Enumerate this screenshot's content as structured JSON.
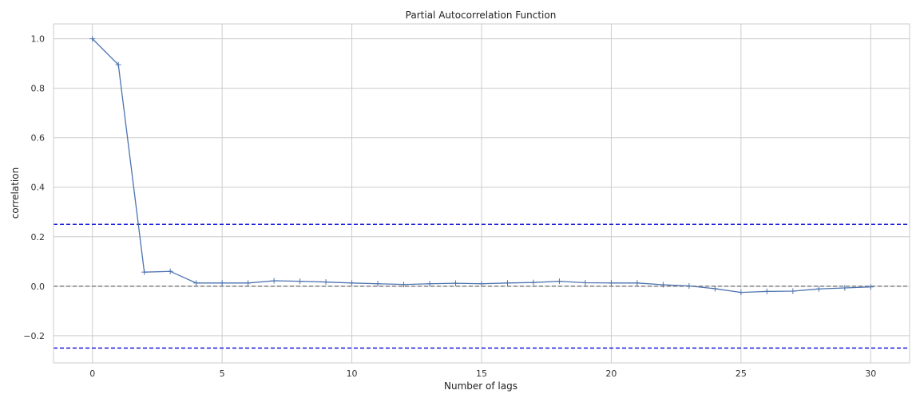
{
  "chart_data": {
    "type": "line",
    "title": "Partial Autocorrelation Function",
    "xlabel": "Number of lags",
    "ylabel": "correlation",
    "xlim": [
      -1.5,
      31.5
    ],
    "ylim": [
      -0.31,
      1.06
    ],
    "xticks": [
      0,
      5,
      10,
      15,
      20,
      25,
      30
    ],
    "xtick_labels": [
      "0",
      "5",
      "10",
      "15",
      "20",
      "25",
      "30"
    ],
    "yticks": [
      -0.2,
      0.0,
      0.2,
      0.4,
      0.6,
      0.8,
      1.0
    ],
    "ytick_labels": [
      "−0.2",
      "0.0",
      "0.2",
      "0.4",
      "0.6",
      "0.8",
      "1.0"
    ],
    "grid": true,
    "series": [
      {
        "color": "#4c72b0",
        "marker": "+",
        "x": [
          0,
          1,
          2,
          3,
          4,
          5,
          6,
          7,
          8,
          9,
          10,
          11,
          12,
          13,
          14,
          15,
          16,
          17,
          18,
          19,
          20,
          21,
          22,
          23,
          24,
          25,
          26,
          27,
          28,
          29,
          30
        ],
        "values": [
          1.0,
          0.895,
          0.057,
          0.06,
          0.013,
          0.013,
          0.013,
          0.022,
          0.02,
          0.017,
          0.013,
          0.01,
          0.007,
          0.01,
          0.012,
          0.01,
          0.013,
          0.015,
          0.02,
          0.014,
          0.013,
          0.013,
          0.006,
          0.001,
          -0.01,
          -0.025,
          -0.021,
          -0.02,
          -0.011,
          -0.007,
          -0.003
        ]
      }
    ],
    "reference_lines": [
      {
        "y": 0.25,
        "color": "#1f1fdd",
        "style": "dashed"
      },
      {
        "y": -0.25,
        "color": "#1f1fdd",
        "style": "dashed"
      },
      {
        "y": 0.0,
        "color": "#808080",
        "style": "dashed"
      }
    ]
  }
}
